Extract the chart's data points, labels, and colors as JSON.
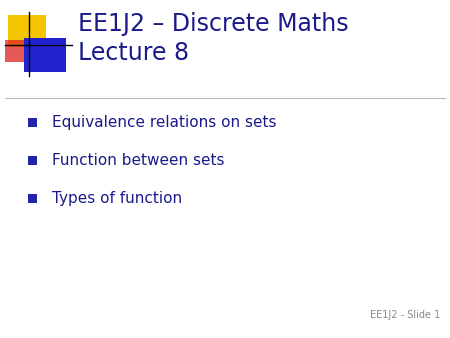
{
  "title_line1": "EE1J2 – Discrete Maths",
  "title_line2": "Lecture 8",
  "title_color": "#1a1a8c",
  "bullet_items": [
    "Equivalence relations on sets",
    "Function between sets",
    "Types of function"
  ],
  "bullet_square_color": "#2222aa",
  "body_text_color": "#1a1a8c",
  "background_color": "#ffffff",
  "footer_text": "EE1J2 - Slide 1",
  "footer_color": "#888888",
  "separator_color": "#bbbbbb",
  "logo_yellow_color": "#f5c400",
  "logo_blue_color": "#2222cc",
  "logo_red_color": "#dd2222",
  "logo_black_line_color": "#000000"
}
